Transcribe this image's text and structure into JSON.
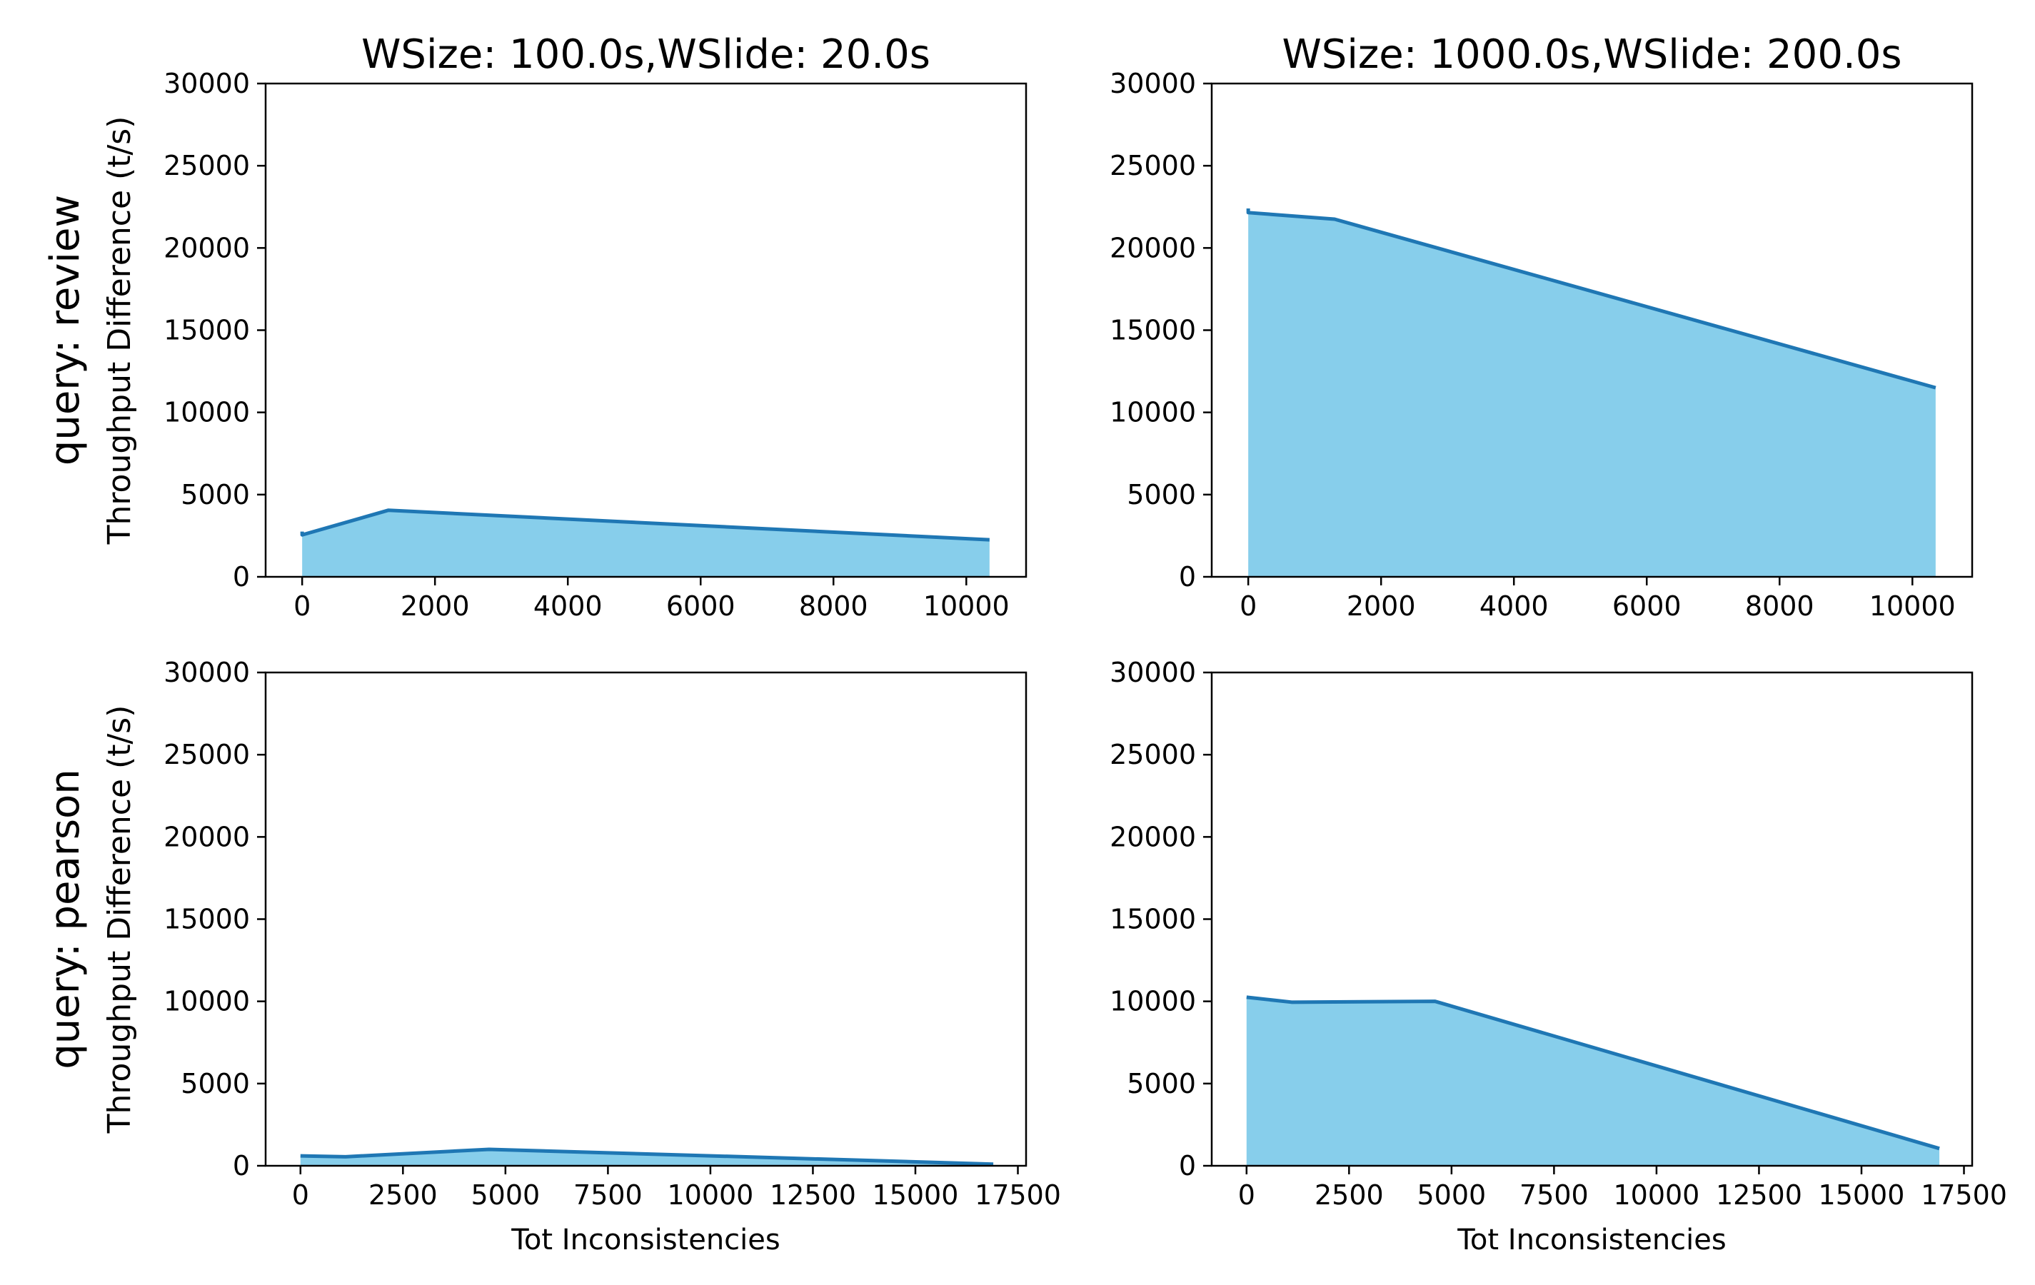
{
  "figure": {
    "row_labels": [
      "query: review",
      "query: pearson"
    ],
    "ylabel": "Throughput Difference (t/s)",
    "xlabel": "Tot Inconsistencies",
    "line_color": "#1f77b4",
    "fill_color": "#87ceeb"
  },
  "chart_data": [
    {
      "type": "area",
      "title": "WSize: 100.0s,WSlide: 20.0s",
      "row": 0,
      "col": 0,
      "xlim": [
        -550,
        10900
      ],
      "ylim": [
        0,
        30000
      ],
      "xticks": [
        0,
        2000,
        4000,
        6000,
        8000,
        10000
      ],
      "yticks": [
        0,
        5000,
        10000,
        15000,
        20000,
        25000,
        30000
      ],
      "x": [
        0,
        0,
        1300,
        10350
      ],
      "y": [
        2750,
        2550,
        4050,
        2250
      ]
    },
    {
      "type": "area",
      "title": "WSize: 1000.0s,WSlide: 200.0s",
      "row": 0,
      "col": 1,
      "xlim": [
        -550,
        10900
      ],
      "ylim": [
        0,
        30000
      ],
      "xticks": [
        0,
        2000,
        4000,
        6000,
        8000,
        10000
      ],
      "yticks": [
        0,
        5000,
        10000,
        15000,
        20000,
        25000,
        30000
      ],
      "x": [
        0,
        0,
        1300,
        10350
      ],
      "y": [
        22400,
        22150,
        21750,
        11500
      ]
    },
    {
      "type": "area",
      "title": "",
      "row": 1,
      "col": 0,
      "xlim": [
        -850,
        17700
      ],
      "ylim": [
        0,
        30000
      ],
      "xticks": [
        0,
        2500,
        5000,
        7500,
        10000,
        12500,
        15000,
        17500
      ],
      "yticks": [
        0,
        5000,
        10000,
        15000,
        20000,
        25000,
        30000
      ],
      "x": [
        0,
        1100,
        4600,
        16900
      ],
      "y": [
        600,
        550,
        1000,
        100
      ]
    },
    {
      "type": "area",
      "title": "",
      "row": 1,
      "col": 1,
      "xlim": [
        -850,
        17700
      ],
      "ylim": [
        0,
        30000
      ],
      "xticks": [
        0,
        2500,
        5000,
        7500,
        10000,
        12500,
        15000,
        17500
      ],
      "yticks": [
        0,
        5000,
        10000,
        15000,
        20000,
        25000,
        30000
      ],
      "x": [
        0,
        1100,
        4600,
        16900
      ],
      "y": [
        10250,
        9950,
        10000,
        1050
      ]
    }
  ]
}
